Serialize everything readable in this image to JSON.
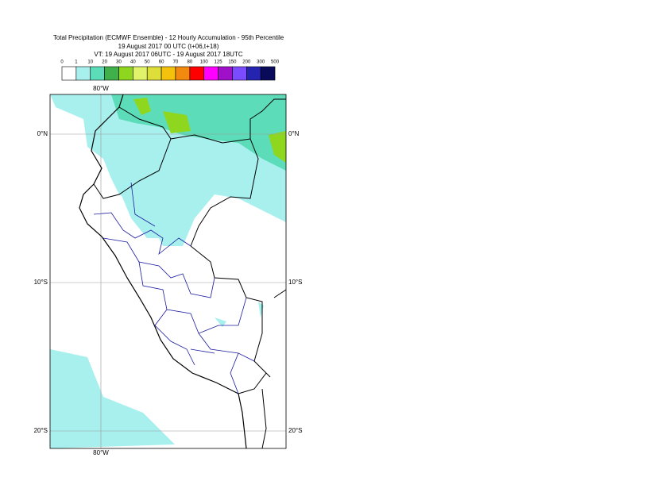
{
  "header": {
    "title": "Total Precipitation (ECMWF Ensemble) - 12 Hourly Accumulation - 95th Percentile",
    "base_time": "19 August 2017 00 UTC (t+06,t+18)",
    "valid_time": "VT: 19 August 2017 06UTC - 19 August 2017 18UTC"
  },
  "legend": {
    "bounds": [
      0,
      1,
      10,
      20,
      30,
      40,
      50,
      60,
      70,
      80,
      100,
      125,
      150,
      200,
      300,
      500
    ],
    "colors": [
      "#ffffff",
      "#a8f0ee",
      "#5cdcb8",
      "#3fb04a",
      "#8fd61f",
      "#e0f36a",
      "#dede3a",
      "#f4c20d",
      "#f28a10",
      "#ff0000",
      "#ff00ff",
      "#a010c8",
      "#7a4bff",
      "#2424b0",
      "#0a0a5a"
    ]
  },
  "map": {
    "lon_label": "80°W",
    "lat_labels": [
      "0°N",
      "10°S",
      "20°S"
    ]
  }
}
